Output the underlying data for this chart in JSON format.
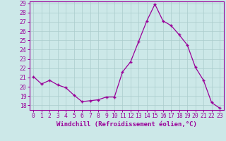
{
  "x": [
    0,
    1,
    2,
    3,
    4,
    5,
    6,
    7,
    8,
    9,
    10,
    11,
    12,
    13,
    14,
    15,
    16,
    17,
    18,
    19,
    20,
    21,
    22,
    23
  ],
  "y": [
    21.1,
    20.3,
    20.7,
    20.2,
    19.9,
    19.1,
    18.4,
    18.5,
    18.6,
    18.9,
    18.9,
    21.6,
    22.7,
    24.9,
    27.1,
    28.9,
    27.1,
    26.6,
    25.6,
    24.5,
    22.1,
    20.7,
    18.3,
    17.7
  ],
  "xlim": [
    -0.5,
    23.5
  ],
  "ylim": [
    17.5,
    29.2
  ],
  "yticks": [
    18,
    19,
    20,
    21,
    22,
    23,
    24,
    25,
    26,
    27,
    28,
    29
  ],
  "xticks": [
    0,
    1,
    2,
    3,
    4,
    5,
    6,
    7,
    8,
    9,
    10,
    11,
    12,
    13,
    14,
    15,
    16,
    17,
    18,
    19,
    20,
    21,
    22,
    23
  ],
  "xlabel": "Windchill (Refroidissement éolien,°C)",
  "line_color": "#990099",
  "marker": "+",
  "background_color": "#cce8e8",
  "grid_color": "#aacccc",
  "label_fontsize": 6.5,
  "tick_fontsize": 5.8
}
